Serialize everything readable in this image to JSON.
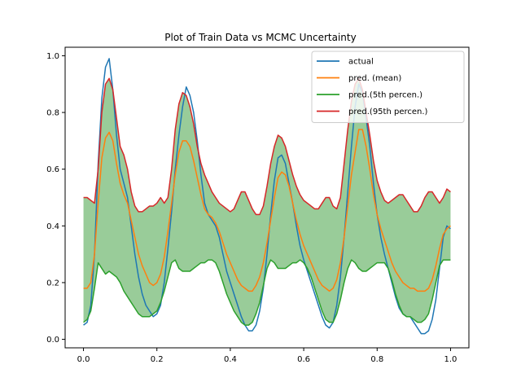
{
  "chart_data": {
    "type": "line",
    "title": "Plot of Train Data vs MCMC Uncertainty",
    "xlabel": "",
    "ylabel": "",
    "xlim": [
      -0.05,
      1.05
    ],
    "ylim": [
      -0.03,
      1.03
    ],
    "x_ticks": [
      0.0,
      0.2,
      0.4,
      0.6,
      0.8,
      1.0
    ],
    "x_tick_labels": [
      "0.0",
      "0.2",
      "0.4",
      "0.6",
      "0.8",
      "1.0"
    ],
    "y_ticks": [
      0.0,
      0.2,
      0.4,
      0.6,
      0.8,
      1.0
    ],
    "y_tick_labels": [
      "0.0",
      "0.2",
      "0.4",
      "0.6",
      "0.8",
      "1.0"
    ],
    "grid": false,
    "legend_position": "top-right",
    "fill_between": {
      "lower_series": "pred.(5th percen.)",
      "upper_series": "pred.(95th percen.)",
      "color": "#99cc99"
    },
    "x": [
      0.0,
      0.01,
      0.02,
      0.03,
      0.04,
      0.05,
      0.06,
      0.07,
      0.08,
      0.09,
      0.1,
      0.11,
      0.12,
      0.13,
      0.14,
      0.15,
      0.16,
      0.17,
      0.18,
      0.19,
      0.2,
      0.21,
      0.22,
      0.23,
      0.24,
      0.25,
      0.26,
      0.27,
      0.28,
      0.29,
      0.3,
      0.31,
      0.32,
      0.33,
      0.34,
      0.35,
      0.36,
      0.37,
      0.38,
      0.39,
      0.4,
      0.41,
      0.42,
      0.43,
      0.44,
      0.45,
      0.46,
      0.47,
      0.48,
      0.49,
      0.5,
      0.51,
      0.52,
      0.53,
      0.54,
      0.55,
      0.56,
      0.57,
      0.58,
      0.59,
      0.6,
      0.61,
      0.62,
      0.63,
      0.64,
      0.65,
      0.66,
      0.67,
      0.68,
      0.69,
      0.7,
      0.71,
      0.72,
      0.73,
      0.74,
      0.75,
      0.76,
      0.77,
      0.78,
      0.79,
      0.8,
      0.81,
      0.82,
      0.83,
      0.84,
      0.85,
      0.86,
      0.87,
      0.88,
      0.89,
      0.9,
      0.91,
      0.92,
      0.93,
      0.94,
      0.95,
      0.96,
      0.97,
      0.98,
      0.99,
      1.0
    ],
    "series": [
      {
        "name": "actual",
        "color": "#1f77b4",
        "values": [
          0.05,
          0.06,
          0.12,
          0.3,
          0.62,
          0.85,
          0.96,
          0.99,
          0.88,
          0.72,
          0.6,
          0.55,
          0.5,
          0.4,
          0.3,
          0.22,
          0.16,
          0.12,
          0.1,
          0.08,
          0.09,
          0.12,
          0.2,
          0.32,
          0.45,
          0.6,
          0.72,
          0.82,
          0.89,
          0.86,
          0.8,
          0.7,
          0.58,
          0.48,
          0.44,
          0.42,
          0.4,
          0.36,
          0.3,
          0.24,
          0.2,
          0.16,
          0.12,
          0.08,
          0.05,
          0.03,
          0.03,
          0.05,
          0.1,
          0.18,
          0.3,
          0.44,
          0.56,
          0.64,
          0.65,
          0.62,
          0.55,
          0.48,
          0.4,
          0.33,
          0.28,
          0.24,
          0.2,
          0.16,
          0.12,
          0.08,
          0.05,
          0.04,
          0.06,
          0.12,
          0.22,
          0.36,
          0.52,
          0.68,
          0.82,
          0.9,
          0.87,
          0.78,
          0.68,
          0.55,
          0.44,
          0.36,
          0.3,
          0.25,
          0.2,
          0.15,
          0.11,
          0.09,
          0.08,
          0.08,
          0.06,
          0.04,
          0.02,
          0.02,
          0.03,
          0.07,
          0.14,
          0.25,
          0.36,
          0.4,
          0.39
        ]
      },
      {
        "name": "pred. (mean)",
        "color": "#ff7f0e",
        "values": [
          0.18,
          0.18,
          0.2,
          0.3,
          0.48,
          0.64,
          0.71,
          0.73,
          0.7,
          0.62,
          0.55,
          0.51,
          0.48,
          0.42,
          0.36,
          0.3,
          0.26,
          0.23,
          0.2,
          0.19,
          0.2,
          0.23,
          0.29,
          0.38,
          0.48,
          0.58,
          0.66,
          0.7,
          0.7,
          0.68,
          0.63,
          0.57,
          0.51,
          0.46,
          0.44,
          0.43,
          0.41,
          0.38,
          0.34,
          0.3,
          0.27,
          0.24,
          0.21,
          0.19,
          0.18,
          0.17,
          0.17,
          0.19,
          0.22,
          0.27,
          0.34,
          0.42,
          0.5,
          0.57,
          0.59,
          0.58,
          0.54,
          0.48,
          0.42,
          0.37,
          0.33,
          0.3,
          0.27,
          0.24,
          0.21,
          0.19,
          0.18,
          0.17,
          0.18,
          0.21,
          0.27,
          0.36,
          0.47,
          0.58,
          0.66,
          0.74,
          0.74,
          0.68,
          0.6,
          0.51,
          0.44,
          0.39,
          0.35,
          0.31,
          0.27,
          0.24,
          0.22,
          0.2,
          0.19,
          0.18,
          0.18,
          0.17,
          0.17,
          0.17,
          0.18,
          0.21,
          0.26,
          0.32,
          0.37,
          0.39,
          0.4
        ]
      },
      {
        "name": "pred.(5th percen.)",
        "color": "#2ca02c",
        "values": [
          0.06,
          0.07,
          0.1,
          0.18,
          0.27,
          0.25,
          0.23,
          0.24,
          0.23,
          0.22,
          0.2,
          0.17,
          0.15,
          0.13,
          0.11,
          0.09,
          0.08,
          0.08,
          0.08,
          0.09,
          0.1,
          0.13,
          0.17,
          0.22,
          0.27,
          0.28,
          0.25,
          0.24,
          0.24,
          0.24,
          0.25,
          0.26,
          0.27,
          0.27,
          0.28,
          0.28,
          0.27,
          0.24,
          0.2,
          0.16,
          0.13,
          0.1,
          0.08,
          0.06,
          0.05,
          0.05,
          0.06,
          0.09,
          0.13,
          0.19,
          0.25,
          0.28,
          0.27,
          0.25,
          0.25,
          0.25,
          0.26,
          0.27,
          0.27,
          0.28,
          0.27,
          0.25,
          0.22,
          0.18,
          0.14,
          0.1,
          0.07,
          0.06,
          0.06,
          0.09,
          0.14,
          0.2,
          0.25,
          0.28,
          0.27,
          0.25,
          0.24,
          0.24,
          0.25,
          0.26,
          0.27,
          0.27,
          0.27,
          0.25,
          0.21,
          0.16,
          0.12,
          0.09,
          0.08,
          0.08,
          0.07,
          0.06,
          0.06,
          0.07,
          0.09,
          0.14,
          0.2,
          0.26,
          0.28,
          0.28,
          0.28
        ]
      },
      {
        "name": "pred.(95th percen.)",
        "color": "#d62728",
        "values": [
          0.5,
          0.5,
          0.49,
          0.48,
          0.6,
          0.8,
          0.9,
          0.92,
          0.88,
          0.78,
          0.68,
          0.65,
          0.6,
          0.52,
          0.47,
          0.45,
          0.45,
          0.46,
          0.47,
          0.47,
          0.48,
          0.5,
          0.48,
          0.5,
          0.6,
          0.74,
          0.83,
          0.87,
          0.86,
          0.82,
          0.76,
          0.68,
          0.62,
          0.58,
          0.55,
          0.52,
          0.5,
          0.48,
          0.47,
          0.46,
          0.45,
          0.46,
          0.49,
          0.52,
          0.52,
          0.49,
          0.46,
          0.44,
          0.44,
          0.47,
          0.54,
          0.62,
          0.68,
          0.72,
          0.71,
          0.68,
          0.63,
          0.58,
          0.54,
          0.51,
          0.49,
          0.48,
          0.47,
          0.46,
          0.46,
          0.48,
          0.5,
          0.5,
          0.47,
          0.46,
          0.5,
          0.62,
          0.74,
          0.84,
          0.9,
          0.92,
          0.88,
          0.8,
          0.72,
          0.63,
          0.56,
          0.52,
          0.49,
          0.48,
          0.49,
          0.5,
          0.51,
          0.51,
          0.49,
          0.47,
          0.45,
          0.45,
          0.47,
          0.5,
          0.52,
          0.52,
          0.5,
          0.48,
          0.5,
          0.53,
          0.52
        ]
      }
    ]
  }
}
